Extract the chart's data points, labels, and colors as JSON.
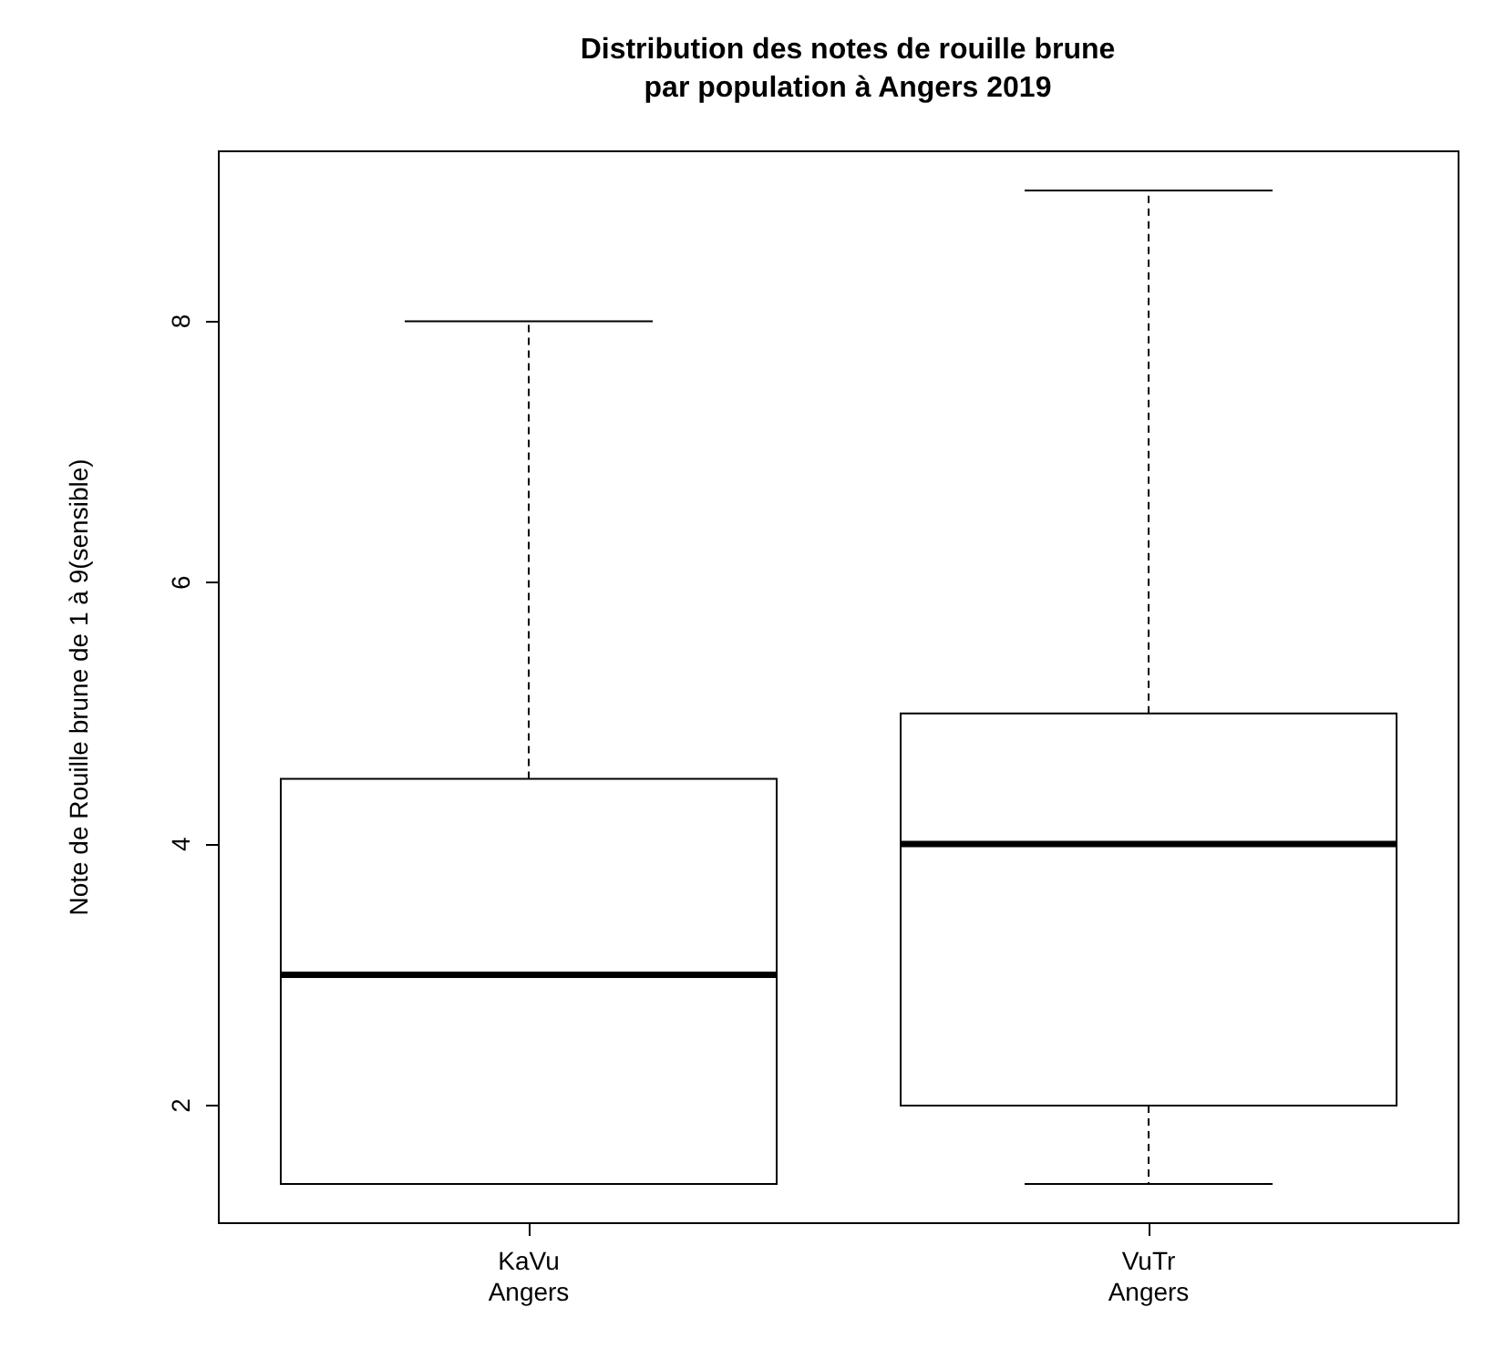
{
  "chart_data": {
    "type": "box",
    "title": "Distribution des notes de rouille brune\npar population à Angers 2019",
    "ylabel": "Note de Rouille brune de 1 à 9(sensible)",
    "categories": [
      "KaVu\nAngers",
      "VuTr\nAngers"
    ],
    "boxes": [
      {
        "low": 1.4,
        "q1": 1.4,
        "median": 3,
        "q3": 4.5,
        "high": 8
      },
      {
        "low": 1.4,
        "q1": 2,
        "median": 4,
        "q3": 5,
        "high": 9
      }
    ],
    "ylim": [
      1.1,
      9.3
    ],
    "yticks": [
      2,
      4,
      6,
      8
    ],
    "grid": false,
    "line_style": "dashed",
    "color": "#000000"
  }
}
